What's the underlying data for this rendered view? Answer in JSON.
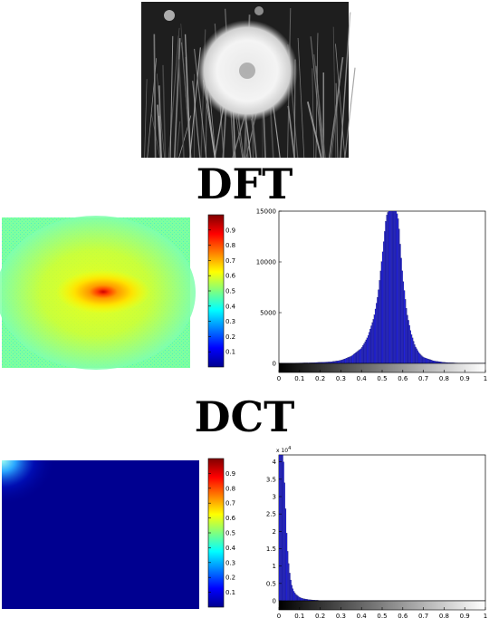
{
  "headings": {
    "dft": "DFT",
    "dct": "DCT"
  },
  "photo": {
    "subject": "dandelion-seed-head",
    "tone": "grayscale"
  },
  "colorbar": {
    "colormap": "jet",
    "range": [
      0,
      1
    ],
    "tick_labels": [
      "0.1",
      "0.2",
      "0.3",
      "0.4",
      "0.5",
      "0.6",
      "0.7",
      "0.8",
      "0.9"
    ]
  },
  "chart_data": [
    {
      "id": "dft-spectrum",
      "type": "heatmap",
      "colormap": "jet",
      "value_range": [
        0,
        1
      ],
      "description_values": {
        "background": 0.5,
        "center_peak": 0.95
      },
      "colorbar_ticks": [
        0.1,
        0.2,
        0.3,
        0.4,
        0.5,
        0.6,
        0.7,
        0.8,
        0.9
      ]
    },
    {
      "id": "dft-histogram",
      "type": "bar",
      "bar_color": "#2222dd",
      "xlim": [
        0,
        1
      ],
      "ylim": [
        0,
        15000
      ],
      "x_tick_labels": [
        "0",
        "0.1",
        "0.2",
        "0.3",
        "0.4",
        "0.5",
        "0.6",
        "0.7",
        "0.8",
        "0.9",
        "1"
      ],
      "y_tick_labels": [
        "0",
        "5000",
        "10000",
        "15000"
      ],
      "y_exponent": "",
      "curve": {
        "x": [
          0.05,
          0.15,
          0.25,
          0.3,
          0.35,
          0.4,
          0.43,
          0.46,
          0.48,
          0.5,
          0.51,
          0.52,
          0.53,
          0.54,
          0.55,
          0.56,
          0.57,
          0.58,
          0.59,
          0.6,
          0.62,
          0.64,
          0.66,
          0.68,
          0.7,
          0.75,
          0.8,
          0.85,
          0.9
        ],
        "y": [
          30,
          60,
          150,
          300,
          700,
          1500,
          2600,
          4500,
          6800,
          10500,
          12500,
          14500,
          15000,
          15000,
          15000,
          15000,
          15000,
          14000,
          11000,
          8500,
          5000,
          3000,
          1700,
          1000,
          600,
          250,
          100,
          50,
          20
        ]
      }
    },
    {
      "id": "dct-spectrum",
      "type": "heatmap",
      "colormap": "jet",
      "value_range": [
        0,
        1
      ],
      "description_values": {
        "background": 0.02,
        "top_left_corner": 0.4
      },
      "colorbar_ticks": [
        0.1,
        0.2,
        0.3,
        0.4,
        0.5,
        0.6,
        0.7,
        0.8,
        0.9
      ]
    },
    {
      "id": "dct-histogram",
      "type": "bar",
      "bar_color": "#2222dd",
      "xlim": [
        0,
        1
      ],
      "ylim": [
        0,
        4.2
      ],
      "x_tick_labels": [
        "0",
        "0.1",
        "0.2",
        "0.3",
        "0.4",
        "0.5",
        "0.6",
        "0.7",
        "0.8",
        "0.9",
        "1"
      ],
      "y_tick_labels": [
        "0",
        "0.5",
        "1",
        "1.5",
        "2",
        "2.5",
        "3",
        "3.5",
        "4"
      ],
      "y_exponent": "x 10",
      "y_exponent_power": "4",
      "curve": {
        "x": [
          0.01,
          0.015,
          0.02,
          0.025,
          0.03,
          0.04,
          0.05,
          0.06,
          0.07,
          0.08,
          0.1,
          0.12,
          0.15,
          0.2,
          0.3,
          0.5,
          0.7,
          0.9
        ],
        "y": [
          4.2,
          4.2,
          4.2,
          3.8,
          3.0,
          1.6,
          0.9,
          0.5,
          0.3,
          0.2,
          0.1,
          0.06,
          0.03,
          0.01,
          0.005,
          0.002,
          0.001,
          0.0005
        ]
      }
    }
  ]
}
